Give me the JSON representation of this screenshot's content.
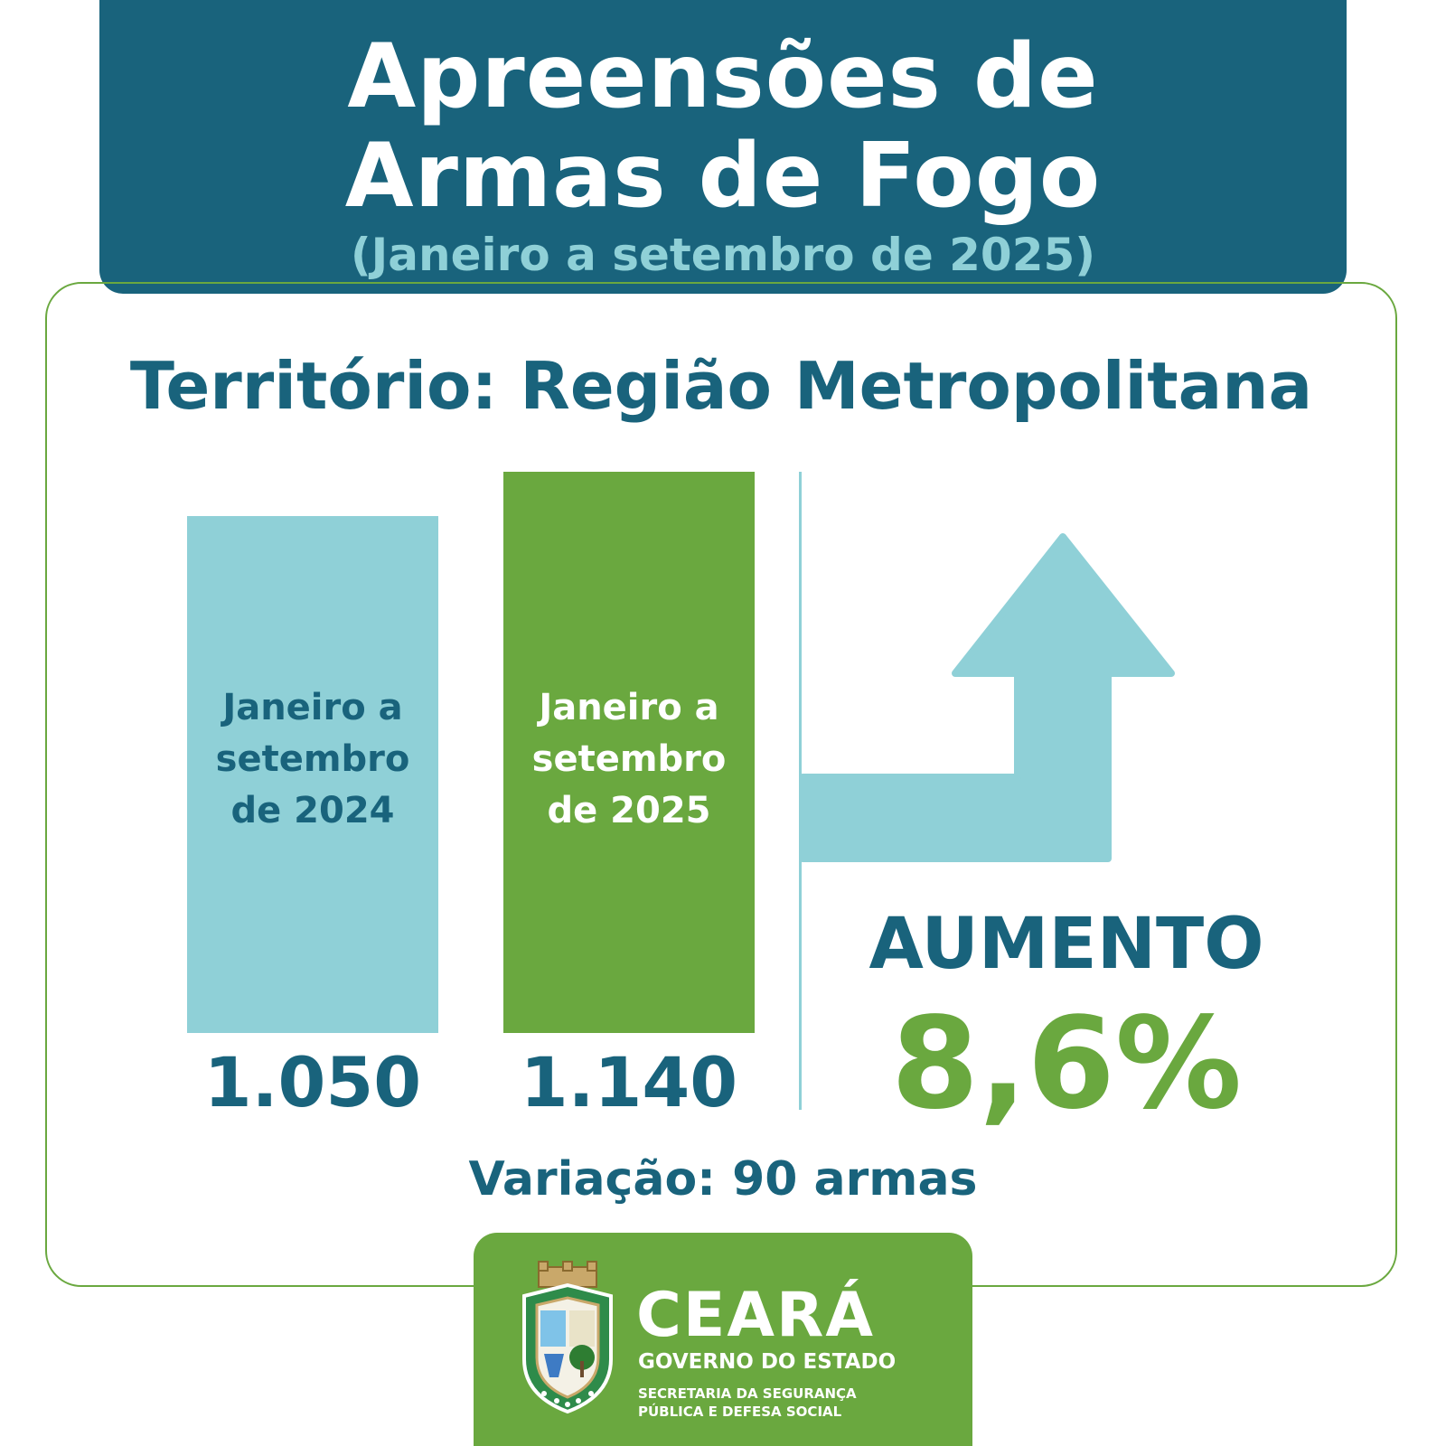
{
  "header": {
    "title_line1": "Apreensões de",
    "title_line2": "Armas de Fogo",
    "subtitle": "(Janeiro a setembro de 2025)"
  },
  "territory": "Território: Região Metropolitana",
  "chart_data": {
    "type": "bar",
    "categories": [
      "Janeiro a setembro de 2024",
      "Janeiro a setembro de 2025"
    ],
    "category_lines": [
      [
        "Janeiro a",
        "setembro",
        "de 2024"
      ],
      [
        "Janeiro a",
        "setembro",
        "de 2025"
      ]
    ],
    "values": [
      1050,
      1140
    ],
    "value_labels": [
      "1.050",
      "1.140"
    ],
    "colors": [
      "#8fd0d7",
      "#6aa83f"
    ],
    "title": "Apreensões de Armas de Fogo",
    "xlabel": "",
    "ylabel": "",
    "grid": false
  },
  "trend": {
    "direction": "up",
    "icon": "arrow-up-icon",
    "label": "AUMENTO",
    "percent": "8,6%",
    "color": "#6aa83f"
  },
  "variation": "Variação: 90 armas",
  "footer": {
    "brand": "CEARÁ",
    "sub": "GOVERNO DO ESTADO",
    "dept_line1": "SECRETARIA DA SEGURANÇA",
    "dept_line2": "PÚBLICA E DEFESA SOCIAL",
    "emblem": "ceara-coat-of-arms-icon"
  },
  "colors": {
    "primary": "#19637c",
    "accent_green": "#6aa83f",
    "light_blue": "#8fd0d7"
  }
}
